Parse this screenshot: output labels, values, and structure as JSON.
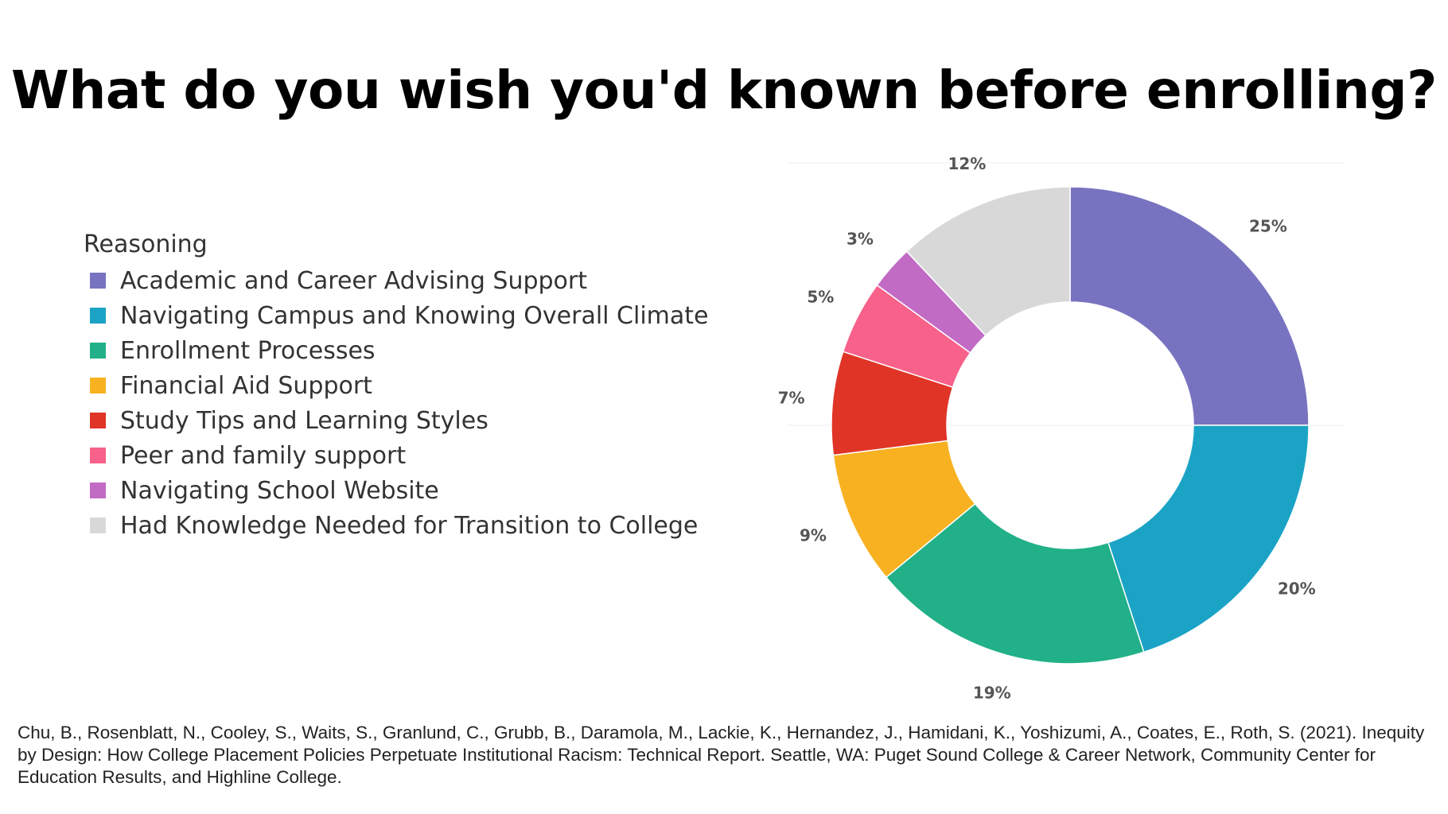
{
  "title": "What do you wish you'd known before enrolling?",
  "citation": "Chu, B., Rosenblatt, N., Cooley, S., Waits, S., Granlund, C., Grubb, B., Daramola, M., Lackie, K., Hernandez, J., Hamidani, K., Yoshizumi, A., Coates, E., Roth, S. (2021). Inequity by Design: How College Placement Policies Perpetuate Institutional Racism: Technical Report. Seattle, WA: Puget Sound College & Career Network, Community Center for Education Results, and Highline College.",
  "chart_data": {
    "type": "pie",
    "title": "What do you wish you'd known before enrolling?",
    "legend_title": "Reasoning",
    "legend_position": "left",
    "donut": true,
    "categories": [
      "Academic and Career Advising Support",
      "Navigating Campus and Knowing Overall Climate",
      "Enrollment Processes",
      "Financial Aid Support",
      "Study Tips and Learning Styles",
      "Peer and family support",
      "Navigating School Website",
      "Had Knowledge Needed for Transition to College"
    ],
    "values": [
      25,
      20,
      19,
      9,
      7,
      5,
      3,
      12
    ],
    "labels": [
      "25%",
      "20%",
      "19%",
      "9%",
      "7%",
      "5%",
      "3%",
      "12%"
    ],
    "colors": [
      "#7873c0",
      "#1ba3c6",
      "#21b087",
      "#f8b121",
      "#e03426",
      "#f7618a",
      "#c16bc4",
      "#d8d8d8"
    ]
  }
}
